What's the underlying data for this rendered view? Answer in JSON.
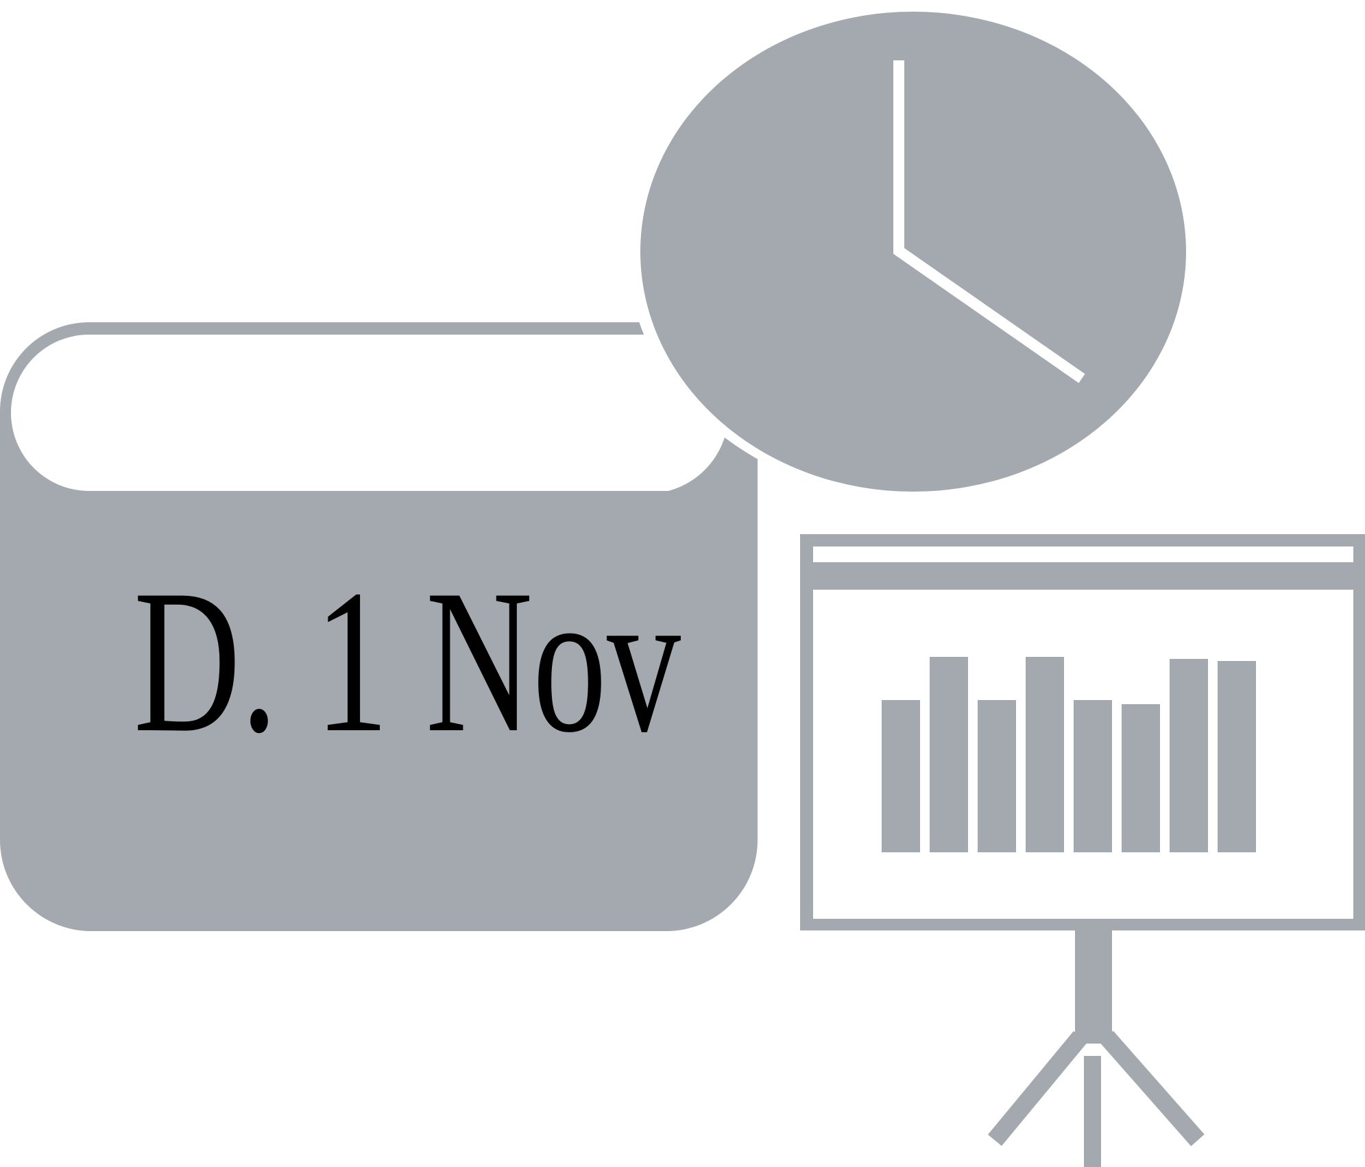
{
  "colors": {
    "icon_gray": "#a3a9ae",
    "background": "#ffffff",
    "text": "#000000",
    "hand": "#ffffff"
  },
  "calendar": {
    "date_label": "D. 1 Nov"
  },
  "clock": {
    "icon": "clock-icon"
  },
  "presentation": {
    "icon": "presentation-board-icon",
    "bar_levels": [
      0.74,
      0.95,
      0.74,
      0.95,
      0.74,
      0.72,
      0.94,
      0.93
    ]
  }
}
